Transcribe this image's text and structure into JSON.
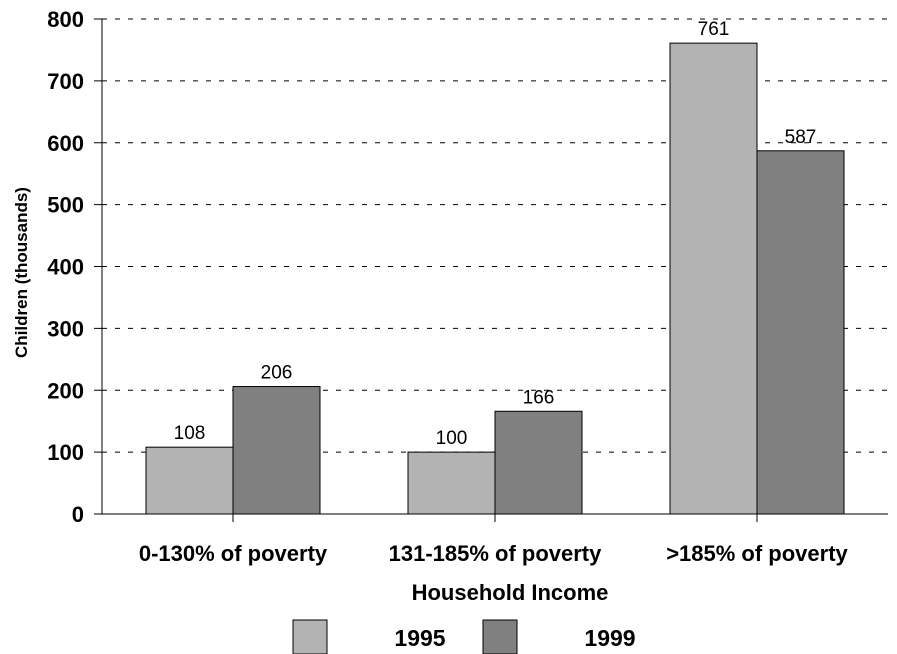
{
  "chart_data": {
    "type": "bar",
    "categories": [
      "0-130% of poverty",
      "131-185% of poverty",
      ">185% of poverty"
    ],
    "series": [
      {
        "name": "1995",
        "values": [
          108,
          100,
          761
        ],
        "color": "#b3b3b3"
      },
      {
        "name": "1999",
        "values": [
          206,
          166,
          587
        ],
        "color": "#808080"
      }
    ],
    "xlabel": "Household Income",
    "ylabel": "Children (thousands)",
    "ylim": [
      0,
      800
    ],
    "yticks": [
      0,
      100,
      200,
      300,
      400,
      500,
      600,
      700,
      800
    ],
    "grid": true,
    "legend": "bottom"
  }
}
